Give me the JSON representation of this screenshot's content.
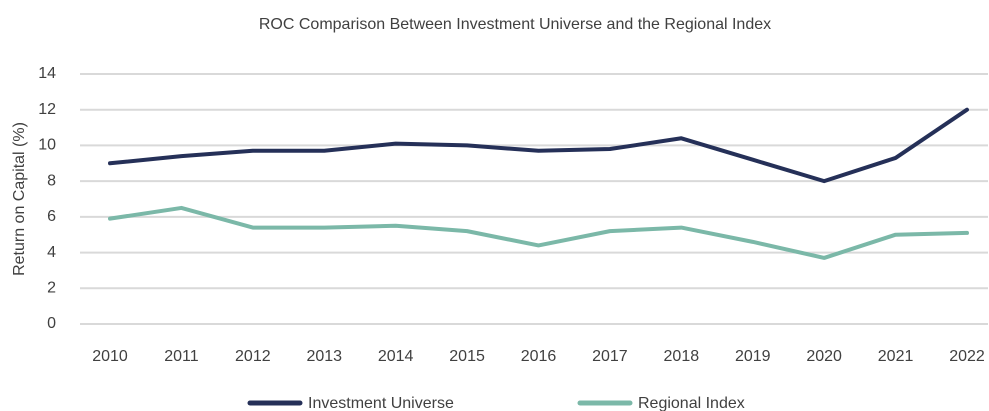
{
  "chart_data": {
    "type": "line",
    "title": "ROC Comparison Between Investment Universe and the Regional Index",
    "y_label": "Return on Capital (%)",
    "categories": [
      "2010",
      "2011",
      "2012",
      "2013",
      "2014",
      "2015",
      "2016",
      "2017",
      "2018",
      "2019",
      "2020",
      "2021",
      "2022"
    ],
    "series": [
      {
        "name": "Investment Universe",
        "color": "#253058",
        "values": [
          9.0,
          9.4,
          9.7,
          9.7,
          10.1,
          10.0,
          9.7,
          9.8,
          10.4,
          9.2,
          8.0,
          9.3,
          12.0
        ]
      },
      {
        "name": "Regional Index",
        "color": "#7bb8a8",
        "values": [
          5.9,
          6.5,
          5.4,
          5.4,
          5.5,
          5.2,
          4.4,
          5.2,
          5.4,
          4.6,
          3.7,
          5.0,
          5.1
        ]
      }
    ],
    "ylim": [
      0,
      14
    ],
    "yticks": [
      0,
      2,
      4,
      6,
      8,
      10,
      12,
      14
    ],
    "grid": true,
    "legend": "bottom"
  }
}
